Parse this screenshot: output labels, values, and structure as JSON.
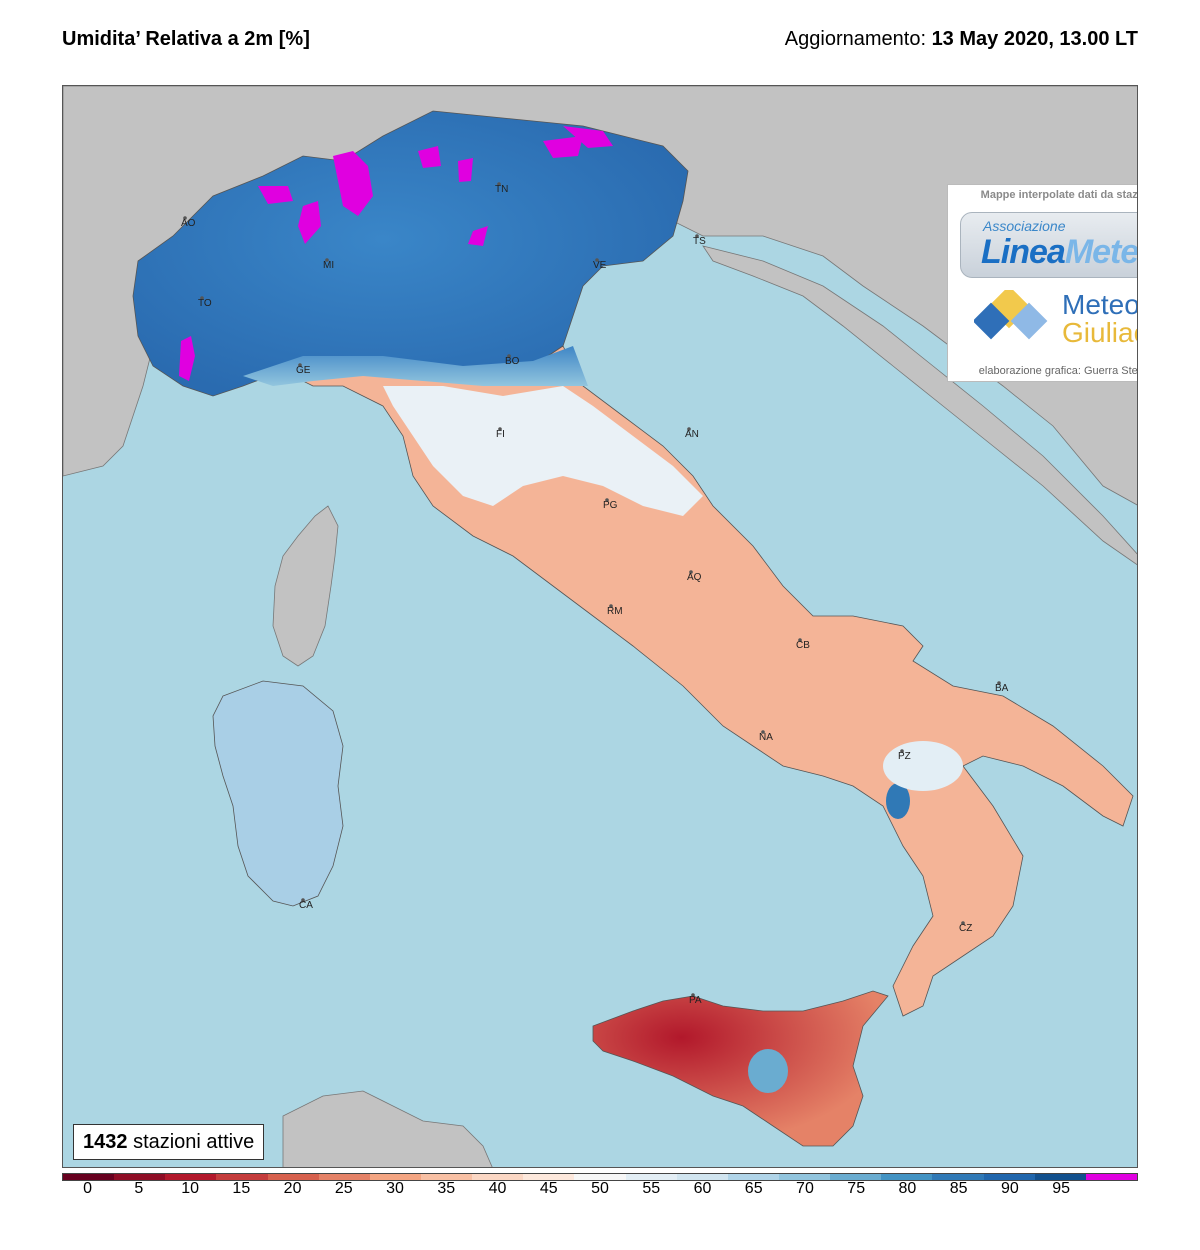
{
  "header": {
    "title": "Umidita’ Relativa a 2m [%]",
    "update_label": "Aggiornamento:",
    "update_value": "13 May 2020, 13.00 LT"
  },
  "logo": {
    "header": "Mappe interpolate dati da stazioni",
    "associazione": "Associazione",
    "lineameteo_1": "Linea",
    "lineameteo_2": "Meteo",
    "meteo": "Meteo",
    "giuliacci": "Giuliacci",
    "credit": "elaborazione grafica: Guerra Stefano"
  },
  "stations": {
    "count": "1432",
    "label": "stazioni attive"
  },
  "colorbar": {
    "ticks": [
      "0",
      "5",
      "10",
      "15",
      "20",
      "25",
      "30",
      "35",
      "40",
      "45",
      "50",
      "55",
      "60",
      "65",
      "70",
      "75",
      "80",
      "85",
      "90",
      "95"
    ],
    "colors": [
      "#67001f",
      "#8e0c25",
      "#b2182b",
      "#c43c3c",
      "#d6604d",
      "#e58267",
      "#f4a582",
      "#f8c0a4",
      "#fbd7c4",
      "#fde8dc",
      "#f7f7f7",
      "#e3eef5",
      "#d1e5f0",
      "#b0d4e8",
      "#92c5de",
      "#6aacd0",
      "#4393c3",
      "#3079b6",
      "#2166ac",
      "#12508d",
      "#e000e0"
    ]
  },
  "cities": [
    "AO",
    "TN",
    "TS",
    "VE",
    "MI",
    "TO",
    "GE",
    "BO",
    "FI",
    "AN",
    "PG",
    "AQ",
    "RM",
    "CB",
    "BA",
    "NA",
    "PZ",
    "CA",
    "CZ",
    "PA"
  ],
  "map": {
    "sea_color": "#acd6e3",
    "land_color": "#c2c2c2",
    "north_humid_color": "#3f86c6",
    "south_dry_color": "#e8937a",
    "sicily_color": "#cf4e44",
    "saturation_color": "#e000e0"
  }
}
